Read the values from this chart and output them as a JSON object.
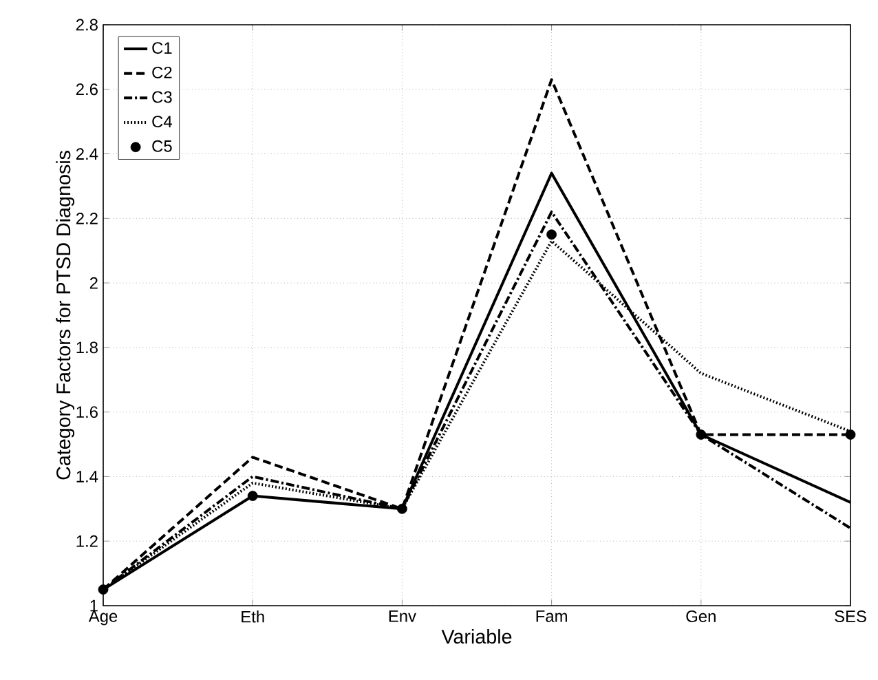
{
  "chart_data": {
    "type": "line",
    "xlabel": "Variable",
    "ylabel": "Category Factors for PTSD Diagnosis",
    "categories": [
      "Age",
      "Eth",
      "Env",
      "Fam",
      "Gen",
      "SES"
    ],
    "series": [
      {
        "name": "C1",
        "color": "#000000",
        "line_style": "solid",
        "values": [
          1.05,
          1.34,
          1.3,
          2.34,
          1.53,
          1.32
        ]
      },
      {
        "name": "C2",
        "color": "#000000",
        "line_style": "dashed",
        "values": [
          1.05,
          1.46,
          1.3,
          2.63,
          1.53,
          1.53
        ]
      },
      {
        "name": "C3",
        "color": "#000000",
        "line_style": "dashdot",
        "values": [
          1.05,
          1.4,
          1.3,
          2.22,
          1.53,
          1.24
        ]
      },
      {
        "name": "C4",
        "color": "#000000",
        "line_style": "dotted",
        "values": [
          1.05,
          1.38,
          1.3,
          2.13,
          1.72,
          1.54
        ]
      },
      {
        "name": "C5",
        "color": "#000000",
        "type": "scatter",
        "marker": "circle",
        "values": [
          1.05,
          1.34,
          1.3,
          2.15,
          1.53,
          1.53
        ]
      }
    ],
    "ylim": [
      1,
      2.8
    ],
    "yticks": [
      1,
      1.2,
      1.4,
      1.6,
      1.8,
      2,
      2.2,
      2.4,
      2.6,
      2.8
    ],
    "grid": true,
    "legend": "top left"
  }
}
